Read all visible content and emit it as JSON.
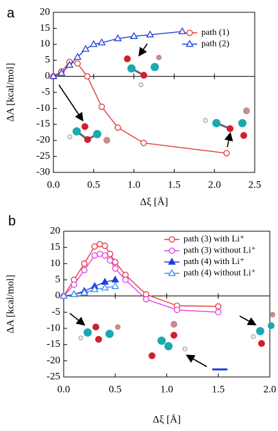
{
  "chart_data": [
    {
      "type": "line",
      "panel_label": "a",
      "xlabel": "Δξ [Å]",
      "ylabel": "ΔA [kcal/mol]",
      "xlim": [
        0,
        2.5
      ],
      "ylim": [
        -30,
        20
      ],
      "xticks": [
        {
          "value": 0,
          "label": "0.0"
        },
        {
          "value": 0.5,
          "label": "0.5"
        },
        {
          "value": 1,
          "label": "1.0"
        },
        {
          "value": 1.5,
          "label": "1.5"
        },
        {
          "value": 2,
          "label": "2.0"
        },
        {
          "value": 2.5,
          "label": "2.5"
        }
      ],
      "yticks": [
        20,
        15,
        10,
        5,
        0,
        -5,
        -10,
        -15,
        -20,
        -25,
        -30
      ],
      "series": [
        {
          "name": "path (1)",
          "color": "#e8383d",
          "marker": "circle",
          "filled": false,
          "x": [
            0,
            0.1,
            0.2,
            0.3,
            0.42,
            0.6,
            0.8,
            1.12,
            2.15
          ],
          "values": [
            0,
            1.5,
            4.5,
            4,
            0,
            -9.5,
            -16,
            -20.8,
            -24
          ]
        },
        {
          "name": "path (2)",
          "color": "#1f3fd8",
          "marker": "triangle",
          "filled": false,
          "x": [
            0,
            0.1,
            0.2,
            0.3,
            0.4,
            0.5,
            0.6,
            0.8,
            1,
            1.2,
            1.6
          ],
          "values": [
            0,
            1,
            3.5,
            6,
            8.5,
            10,
            10.5,
            11.8,
            12.5,
            13,
            14
          ]
        }
      ]
    },
    {
      "type": "line",
      "panel_label": "b",
      "xlabel": "Δξ [Å]",
      "ylabel": "ΔA [kcal/mol]",
      "xlim": [
        0,
        2
      ],
      "ylim": [
        -25,
        20
      ],
      "xticks": [
        {
          "value": 0,
          "label": "0.0"
        },
        {
          "value": 0.5,
          "label": "0.5"
        },
        {
          "value": 1,
          "label": "1.0"
        },
        {
          "value": 1.5,
          "label": "1.5"
        },
        {
          "value": 2,
          "label": "2.0"
        }
      ],
      "yticks": [
        20,
        15,
        10,
        5,
        0,
        -5,
        -10,
        -15,
        -20,
        -25
      ],
      "series": [
        {
          "name": "path (3) with Li⁺",
          "color": "#e8383d",
          "marker": "circle",
          "filled": false,
          "x": [
            0,
            0.1,
            0.2,
            0.3,
            0.35,
            0.4,
            0.45,
            0.5,
            0.6,
            0.8,
            1.1,
            1.5
          ],
          "values": [
            0,
            5,
            10,
            15.3,
            16,
            15.5,
            13,
            10.5,
            6.5,
            0.5,
            -3,
            -3.2
          ]
        },
        {
          "name": "path (3) without Li⁺",
          "color": "#e040e8",
          "marker": "circle",
          "filled": false,
          "x": [
            0,
            0.1,
            0.2,
            0.3,
            0.35,
            0.4,
            0.45,
            0.5,
            0.6,
            0.8,
            1.1,
            1.5
          ],
          "values": [
            0,
            3.5,
            8,
            12.5,
            13,
            12.5,
            11,
            8.5,
            5,
            -1,
            -4.3,
            -5
          ]
        },
        {
          "name": "path (4) with Li⁺",
          "color": "#1f3fd8",
          "marker": "triangle",
          "filled": true,
          "x": [
            0,
            0.1,
            0.2,
            0.3,
            0.4,
            0.5
          ],
          "values": [
            0,
            0.5,
            1.5,
            3,
            4.3,
            5
          ]
        },
        {
          "name": "path (4) without Li⁺",
          "color": "#3a8fe8",
          "marker": "triangle",
          "filled": false,
          "x": [
            0,
            0.1,
            0.2,
            0.3,
            0.4,
            0.5
          ],
          "values": [
            0,
            0.5,
            1,
            2,
            2.5,
            3
          ]
        }
      ]
    }
  ]
}
